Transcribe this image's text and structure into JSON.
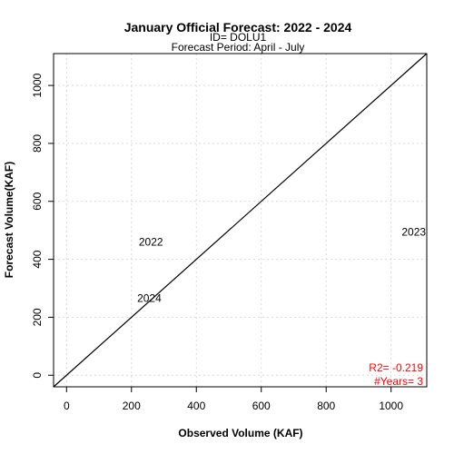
{
  "chart_data": {
    "type": "scatter",
    "title": "January Official Forecast: 2022 - 2024",
    "subtitle_id": "ID= DOLU1",
    "subtitle_period": "Forecast Period:  April - July",
    "xlabel": "Observed Volume (KAF)",
    "ylabel": "Forecast Volume(KAF)",
    "xlim": [
      -40,
      1110
    ],
    "ylim": [
      -40,
      1110
    ],
    "x_ticks": [
      0,
      200,
      400,
      600,
      800,
      1000
    ],
    "y_ticks": [
      0,
      200,
      400,
      600,
      800,
      1000
    ],
    "grid": true,
    "grid_color": "#d9d9d9",
    "reference_line": "1:1",
    "points": [
      {
        "label": "2022",
        "x": 260,
        "y": 460
      },
      {
        "label": "2023",
        "x": 1070,
        "y": 495
      },
      {
        "label": "2024",
        "x": 255,
        "y": 265
      }
    ],
    "stats": {
      "r2": "R2= -0.219",
      "years": "#Years=  3",
      "color": "#ff0000"
    }
  }
}
